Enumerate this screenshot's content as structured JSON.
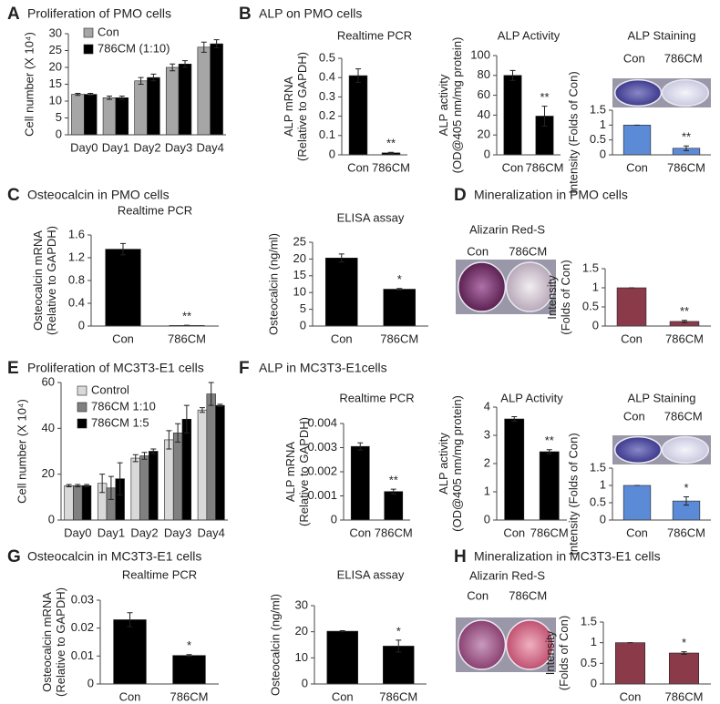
{
  "panels": [
    {
      "letter": "A",
      "title": "Proliferation of PMO cells"
    },
    {
      "letter": "B",
      "title": "ALP on PMO cells"
    },
    {
      "letter": "C",
      "title": "Osteocalcin in PMO cells"
    },
    {
      "letter": "D",
      "title": "Mineralization in PMO cells"
    },
    {
      "letter": "E",
      "title": "Proliferation of MC3T3-E1 cells"
    },
    {
      "letter": "F",
      "title": "ALP in MC3T3-E1cells"
    },
    {
      "letter": "G",
      "title": "Osteocalcin in MC3T3-E1 cells"
    },
    {
      "letter": "H",
      "title": "Mineralization in MC3T3-E1 cells"
    }
  ],
  "images": [
    {
      "labels": [
        "Con",
        "786CM"
      ]
    },
    {
      "caption": "Alizarin Red-S",
      "labels": [
        "Con",
        "786CM"
      ]
    },
    {
      "labels": [
        "Con",
        "786CM"
      ]
    },
    {
      "caption": "Alizarin Red-S",
      "labels": [
        "Con",
        "786CM"
      ]
    }
  ],
  "chart_data": [
    {
      "type": "bar",
      "ylabel": [
        "Cell number (X 10⁴)"
      ],
      "categories": [
        "Day0",
        "Day1",
        "Day2",
        "Day3",
        "Day4"
      ],
      "series": [
        {
          "name": "Con",
          "color": "#a6a6a6",
          "values": [
            12,
            11,
            16,
            20,
            26
          ],
          "errors": [
            0.3,
            0.5,
            1,
            1,
            1.5
          ]
        },
        {
          "name": "786CM (1:10)",
          "color": "#000000",
          "values": [
            12,
            11,
            17,
            21,
            27
          ],
          "errors": [
            0.3,
            0.5,
            1,
            1,
            1.2
          ]
        }
      ],
      "ylim": [
        0,
        30
      ],
      "yticks": [
        0,
        5,
        10,
        15,
        20,
        25,
        30
      ]
    },
    {
      "type": "bar",
      "title": "Realtime PCR",
      "ylabel": [
        "ALP mRNA",
        "(Relative to GAPDH)"
      ],
      "categories": [
        "Con",
        "786CM"
      ],
      "series": [
        {
          "color": "#000000",
          "values": [
            0.41,
            0.01
          ],
          "errors": [
            0.035,
            0.003
          ]
        }
      ],
      "annotations": [
        {
          "index": 1,
          "text": "**"
        }
      ],
      "ylim": [
        0,
        0.5
      ],
      "yticks": [
        0,
        0.1,
        0.2,
        0.3,
        0.4,
        0.5
      ]
    },
    {
      "type": "bar",
      "title": "ALP Activity",
      "ylabel": [
        "ALP activity",
        "(OD@405 nm/mg protein)"
      ],
      "categories": [
        "Con",
        "786CM"
      ],
      "series": [
        {
          "color": "#000000",
          "values": [
            80,
            39
          ],
          "errors": [
            5,
            10
          ]
        }
      ],
      "annotations": [
        {
          "index": 1,
          "text": "**"
        }
      ],
      "ylim": [
        0,
        100
      ],
      "yticks": [
        0,
        20,
        40,
        60,
        80,
        100
      ]
    },
    {
      "type": "bar",
      "title": "ALP Staining",
      "ylabel": [
        "Intensity (Folds of Con)"
      ],
      "categories": [
        "Con",
        "786CM"
      ],
      "series": [
        {
          "color": "#5b8bd6",
          "values": [
            1,
            0.22
          ],
          "errors": [
            0,
            0.08
          ]
        }
      ],
      "annotations": [
        {
          "index": 1,
          "text": "**"
        }
      ],
      "ylim": [
        0,
        1.5
      ],
      "yticks": [
        0,
        0.5,
        1,
        1.5
      ]
    },
    {
      "type": "bar",
      "title": "Realtime PCR",
      "ylabel": [
        "Osteocalcin mRNA",
        "(Relative to GAPDH)"
      ],
      "categories": [
        "Con",
        "786CM"
      ],
      "series": [
        {
          "color": "#000000",
          "values": [
            1.35,
            0.01
          ],
          "errors": [
            0.1,
            0.005
          ]
        }
      ],
      "annotations": [
        {
          "index": 1,
          "text": "**"
        }
      ],
      "ylim": [
        0,
        1.6
      ],
      "yticks": [
        0,
        0.4,
        0.8,
        1.2,
        1.6
      ]
    },
    {
      "type": "bar",
      "title": "ELISA assay",
      "ylabel": [
        "Osteocalcin (ng/ml)"
      ],
      "categories": [
        "Con",
        "786CM"
      ],
      "series": [
        {
          "color": "#000000",
          "values": [
            20.3,
            11
          ],
          "errors": [
            1.2,
            0.2
          ]
        }
      ],
      "annotations": [
        {
          "index": 1,
          "text": "*"
        }
      ],
      "ylim": [
        0,
        25
      ],
      "yticks": [
        0,
        5,
        10,
        15,
        20,
        25
      ]
    },
    {
      "type": "bar",
      "ylabel": [
        "Intensity",
        "(Folds of Con)"
      ],
      "categories": [
        "Con",
        "786CM"
      ],
      "series": [
        {
          "color": "#8b3a4a",
          "values": [
            1,
            0.12
          ],
          "errors": [
            0,
            0.03
          ]
        }
      ],
      "annotations": [
        {
          "index": 1,
          "text": "**"
        }
      ],
      "ylim": [
        0,
        1.5
      ],
      "yticks": [
        0,
        0.5,
        1,
        1.5
      ]
    },
    {
      "type": "bar",
      "ylabel": [
        "Cell number (X 10⁴)"
      ],
      "categories": [
        "Day0",
        "Day1",
        "Day2",
        "Day3",
        "Day4"
      ],
      "series": [
        {
          "name": "Control",
          "color": "#d9d9d9",
          "values": [
            15,
            16,
            27,
            35,
            48
          ],
          "errors": [
            0.5,
            4,
            1.5,
            4,
            1
          ]
        },
        {
          "name": "786CM 1:10",
          "color": "#808080",
          "values": [
            15,
            14,
            28,
            38,
            55
          ],
          "errors": [
            0.5,
            5,
            1.5,
            4,
            5
          ]
        },
        {
          "name": "786CM 1:5",
          "color": "#000000",
          "values": [
            15,
            18,
            30,
            44,
            50
          ],
          "errors": [
            0.5,
            7,
            1,
            6,
            0.5
          ]
        }
      ],
      "ylim": [
        0,
        60
      ],
      "yticks": [
        0,
        20,
        40,
        60
      ]
    },
    {
      "type": "bar",
      "title": "Realtime PCR",
      "ylabel": [
        "ALP mRNA",
        "(Relative to GAPDH)"
      ],
      "categories": [
        "Con",
        "786CM"
      ],
      "series": [
        {
          "color": "#000000",
          "values": [
            0.00305,
            0.00118
          ],
          "errors": [
            0.00015,
            0.0001
          ]
        }
      ],
      "annotations": [
        {
          "index": 1,
          "text": "**"
        }
      ],
      "ylim": [
        0,
        0.004
      ],
      "yticks": [
        0,
        0.001,
        0.002,
        0.003,
        0.004
      ]
    },
    {
      "type": "bar",
      "title": "ALP Activity",
      "ylabel": [
        "ALP activity",
        "(OD@405 nm/mg protein)"
      ],
      "categories": [
        "Con",
        "786CM"
      ],
      "series": [
        {
          "color": "#000000",
          "values": [
            3.58,
            2.42
          ],
          "errors": [
            0.08,
            0.07
          ]
        }
      ],
      "annotations": [
        {
          "index": 1,
          "text": "**"
        }
      ],
      "ylim": [
        0,
        4
      ],
      "yticks": [
        0,
        1,
        2,
        3,
        4
      ]
    },
    {
      "type": "bar",
      "title": "ALP Staining",
      "ylabel": [
        "Intensity (Folds of Con)"
      ],
      "categories": [
        "Con",
        "786CM"
      ],
      "series": [
        {
          "color": "#5b8bd6",
          "values": [
            1,
            0.55
          ],
          "errors": [
            0,
            0.12
          ]
        }
      ],
      "annotations": [
        {
          "index": 1,
          "text": "*"
        }
      ],
      "ylim": [
        0,
        1.5
      ],
      "yticks": [
        0,
        0.5,
        1,
        1.5
      ]
    },
    {
      "type": "bar",
      "title": "Realtime PCR",
      "ylabel": [
        "Osteocalcin mRNA",
        "(Relative to GAPDH)"
      ],
      "categories": [
        "Con",
        "786CM"
      ],
      "series": [
        {
          "color": "#000000",
          "values": [
            0.023,
            0.0102
          ],
          "errors": [
            0.0025,
            0.0003
          ]
        }
      ],
      "annotations": [
        {
          "index": 1,
          "text": "*"
        }
      ],
      "ylim": [
        0,
        0.03
      ],
      "yticks": [
        0,
        0.01,
        0.02,
        0.03
      ]
    },
    {
      "type": "bar",
      "title": "ELISA assay",
      "ylabel": [
        "Osteocalcin (ng/ml)"
      ],
      "categories": [
        "Con",
        "786CM"
      ],
      "series": [
        {
          "color": "#000000",
          "values": [
            20.2,
            14.5
          ],
          "errors": [
            0.2,
            2.3
          ]
        }
      ],
      "annotations": [
        {
          "index": 1,
          "text": "*"
        }
      ],
      "ylim": [
        0,
        30
      ],
      "yticks": [
        0,
        10,
        20,
        30
      ]
    },
    {
      "type": "bar",
      "ylabel": [
        "Intensity",
        "(Folds of Con)"
      ],
      "categories": [
        "Con",
        "786CM"
      ],
      "series": [
        {
          "color": "#8b3a4a",
          "values": [
            1,
            0.75
          ],
          "errors": [
            0,
            0.03
          ]
        }
      ],
      "annotations": [
        {
          "index": 1,
          "text": "*"
        }
      ],
      "ylim": [
        0,
        1.5
      ],
      "yticks": [
        0,
        0.5,
        1,
        1.5
      ]
    }
  ]
}
